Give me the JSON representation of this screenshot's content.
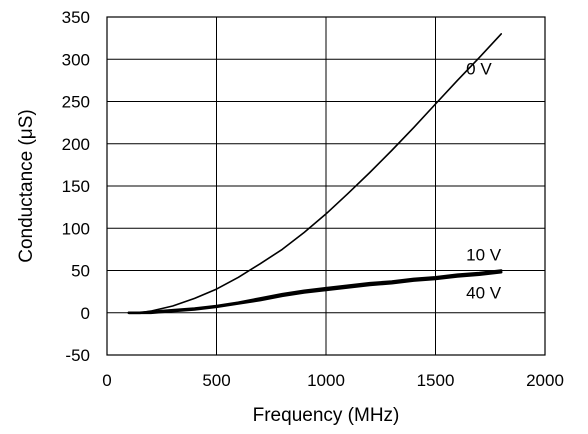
{
  "chart_data": {
    "type": "line",
    "xlabel": "Frequency (MHz)",
    "ylabel": "Conductance (μS)",
    "xlim": [
      0,
      2000
    ],
    "ylim": [
      -50,
      350
    ],
    "xticks": [
      "0",
      "500",
      "1000",
      "1500",
      "2000"
    ],
    "yticks": [
      "-50",
      "0",
      "50",
      "100",
      "150",
      "200",
      "250",
      "300",
      "350"
    ],
    "grid": true,
    "series": [
      {
        "name": "0 V",
        "x": [
          100,
          150,
          200,
          300,
          400,
          500,
          600,
          700,
          800,
          900,
          1000,
          1100,
          1200,
          1300,
          1400,
          1500,
          1600,
          1700,
          1800
        ],
        "y": [
          0,
          0,
          2,
          8,
          17,
          28,
          42,
          58,
          75,
          95,
          117,
          141,
          166,
          192,
          219,
          247,
          275,
          302,
          330
        ]
      },
      {
        "name": "10 V",
        "x": [
          100,
          150,
          200,
          300,
          400,
          500,
          600,
          700,
          800,
          900,
          1000,
          1100,
          1200,
          1300,
          1400,
          1500,
          1600,
          1700,
          1800
        ],
        "y": [
          0,
          0,
          1,
          3,
          5,
          8,
          12,
          17,
          22,
          26,
          29,
          32,
          35,
          37,
          40,
          42,
          45,
          47,
          50
        ]
      },
      {
        "name": "40 V",
        "x": [
          100,
          150,
          200,
          300,
          400,
          500,
          600,
          700,
          800,
          900,
          1000,
          1100,
          1200,
          1300,
          1400,
          1500,
          1600,
          1700,
          1800
        ],
        "y": [
          0,
          0,
          0,
          2,
          4,
          7,
          11,
          15,
          20,
          24,
          27,
          30,
          33,
          35,
          38,
          40,
          43,
          45,
          48
        ]
      }
    ]
  }
}
